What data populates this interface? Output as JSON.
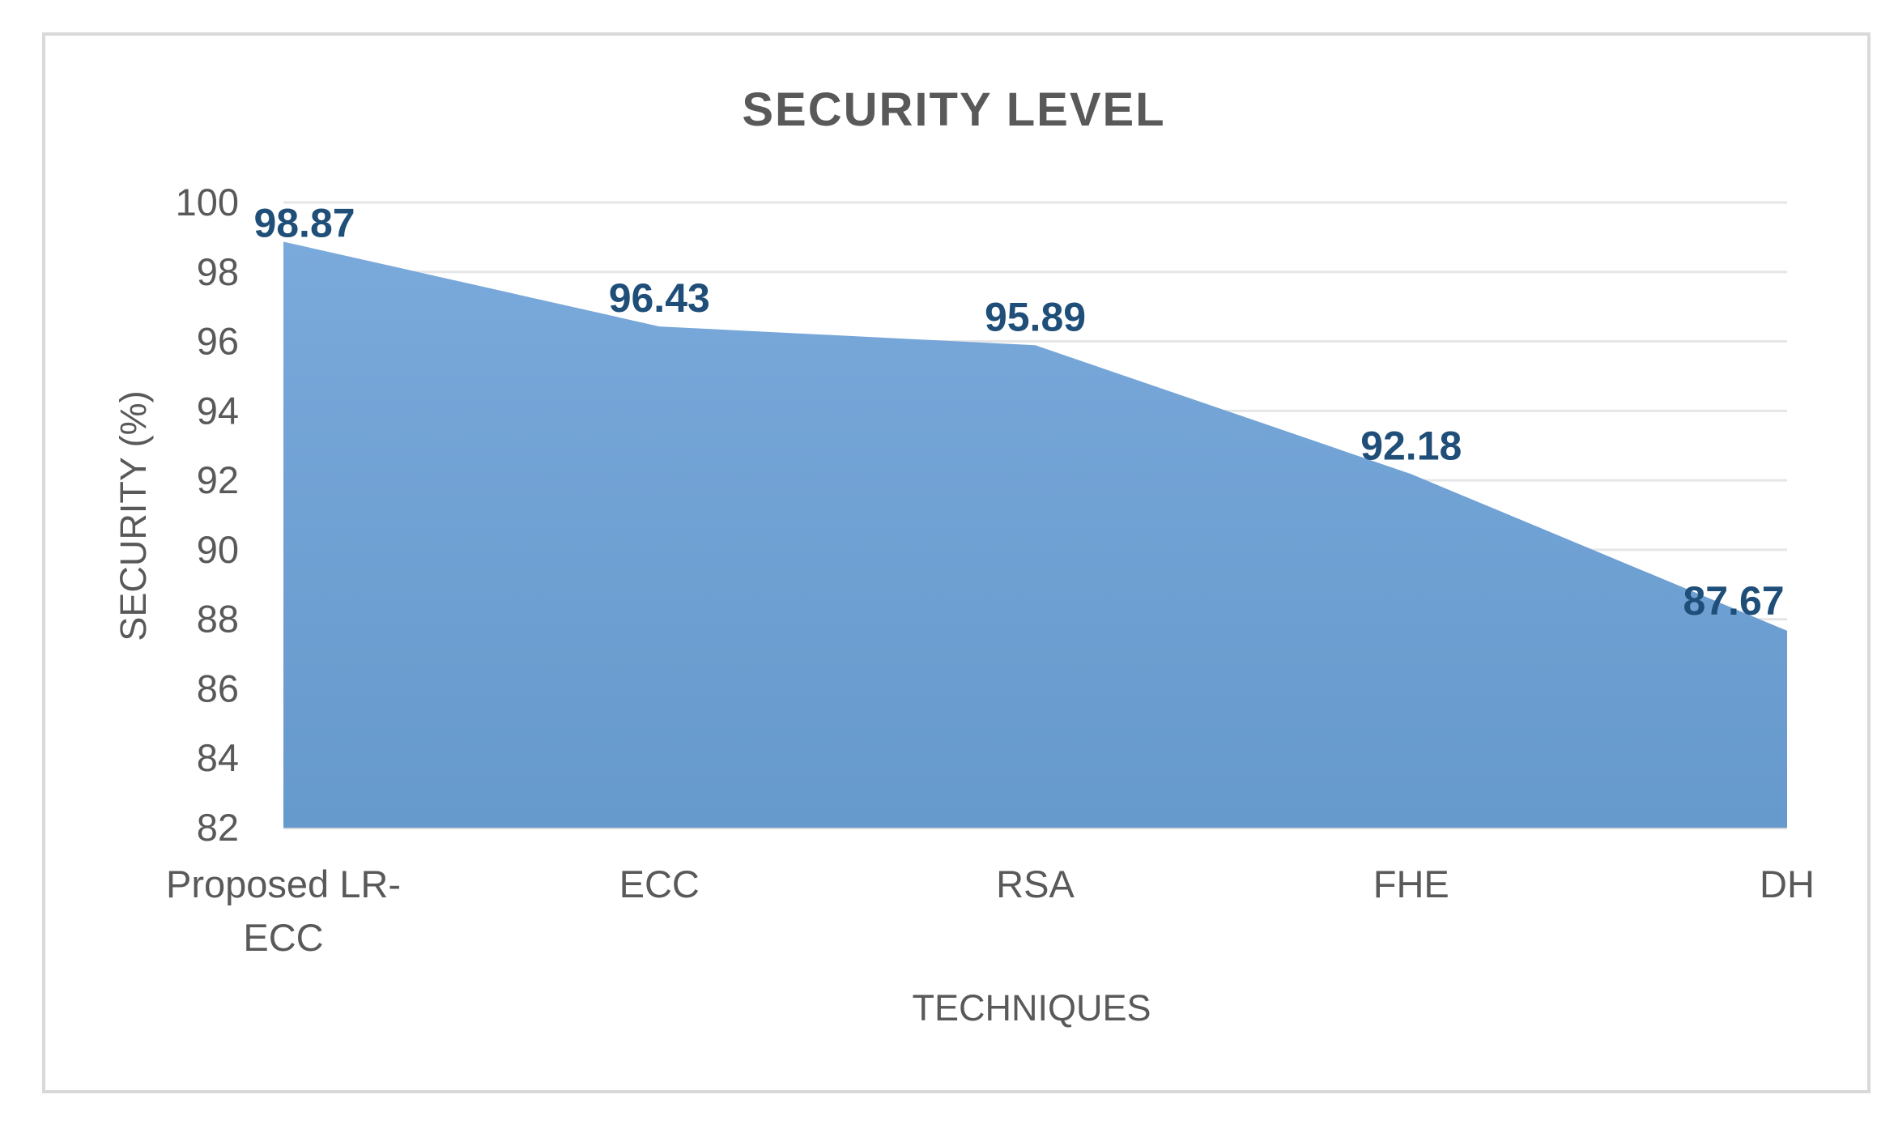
{
  "chart_data": {
    "type": "area",
    "title": "SECURITY LEVEL",
    "xlabel": "TECHNIQUES",
    "ylabel": "SECURITY (%)",
    "categories": [
      [
        "Proposed LR-",
        "ECC"
      ],
      [
        "ECC"
      ],
      [
        "RSA"
      ],
      [
        "FHE"
      ],
      [
        "DH"
      ]
    ],
    "values": [
      98.87,
      96.43,
      95.89,
      92.18,
      87.67
    ],
    "data_labels": [
      "98.87",
      "96.43",
      "95.89",
      "92.18",
      "87.67"
    ],
    "ylim": [
      82,
      100
    ],
    "yticks": [
      82,
      84,
      86,
      88,
      90,
      92,
      94,
      96,
      98,
      100
    ],
    "grid": true,
    "legend": "none",
    "colors": {
      "area_top": "#7aa9db",
      "area_bottom": "#6699cc",
      "data_label": "#1f4e79",
      "text": "#595959",
      "grid": "#e6e6e6",
      "frame": "#d9d9d9"
    }
  }
}
